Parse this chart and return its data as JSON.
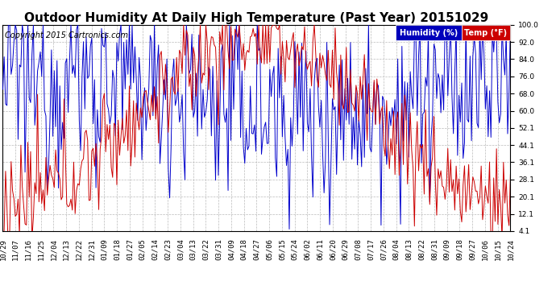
{
  "title": "Outdoor Humidity At Daily High Temperature (Past Year) 20151029",
  "copyright": "Copyright 2015 Cartronics.com",
  "legend_humidity_label": "Humidity (%)",
  "legend_temp_label": "Temp (°F)",
  "legend_humidity_bg": "#0000bb",
  "legend_temp_bg": "#cc0000",
  "ylim_min": 4.1,
  "ylim_max": 100.0,
  "yticks": [
    100.0,
    92.0,
    84.0,
    76.0,
    68.0,
    60.0,
    52.1,
    44.1,
    36.1,
    28.1,
    20.1,
    12.1,
    4.1
  ],
  "humidity_color": "#0000cc",
  "temp_color": "#cc0000",
  "background_color": "#ffffff",
  "plot_bg_color": "#ffffff",
  "grid_color": "#bbbbbb",
  "title_fontsize": 11,
  "copyright_fontsize": 7,
  "tick_label_fontsize": 6.5,
  "x_labels": [
    "10/29",
    "11/07",
    "11/16",
    "11/25",
    "12/04",
    "12/13",
    "12/22",
    "12/31",
    "01/09",
    "01/18",
    "01/27",
    "02/05",
    "02/14",
    "02/23",
    "03/04",
    "03/13",
    "03/22",
    "03/31",
    "04/09",
    "04/18",
    "04/27",
    "05/06",
    "05/15",
    "05/24",
    "06/02",
    "06/11",
    "06/20",
    "06/29",
    "07/08",
    "07/17",
    "07/26",
    "08/04",
    "08/13",
    "08/22",
    "08/31",
    "09/09",
    "09/18",
    "09/27",
    "10/06",
    "10/15",
    "10/24"
  ],
  "n_points": 366
}
